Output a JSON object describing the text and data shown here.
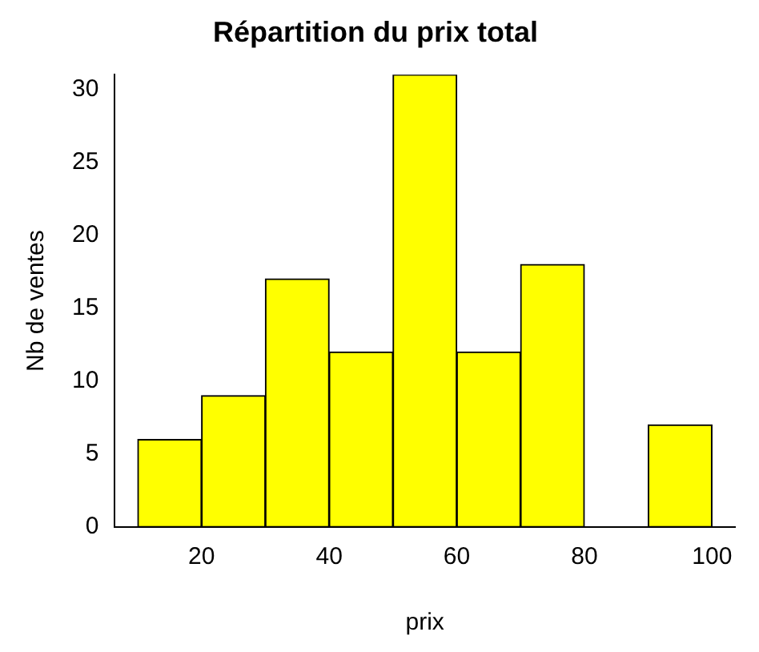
{
  "chart_data": {
    "type": "histogram",
    "title": "Répartition du prix total",
    "xlabel": "prix",
    "ylabel": "Nb de ventes",
    "bins": [
      10,
      20,
      30,
      40,
      50,
      60,
      70,
      80,
      90,
      100
    ],
    "values": [
      6,
      9,
      17,
      12,
      31,
      12,
      18,
      0,
      7
    ],
    "color": "#ffff00",
    "xlim": [
      6.4,
      103.6
    ],
    "xticks": [
      20,
      40,
      60,
      80,
      100
    ],
    "ylim": [
      0,
      31
    ],
    "yticks": [
      0,
      5,
      10,
      15,
      20,
      25,
      30
    ]
  }
}
